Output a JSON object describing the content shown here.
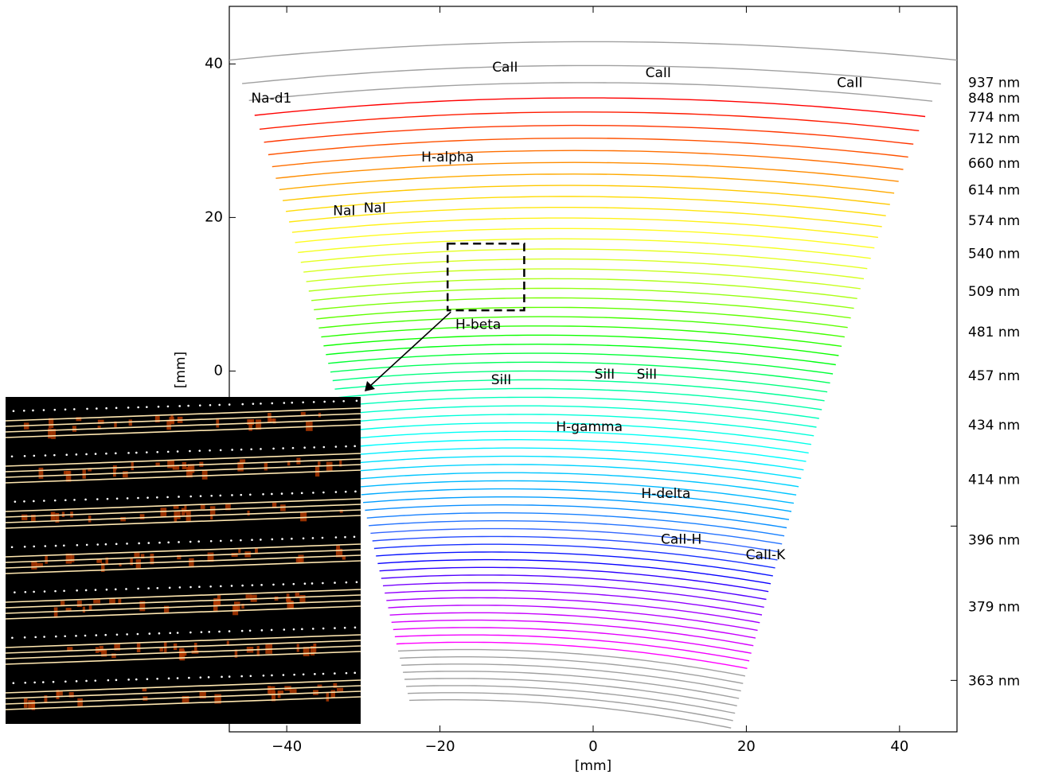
{
  "chart_data": {
    "type": "line",
    "title": "",
    "xlabel": "[mm]",
    "ylabel": "[mm]",
    "xlim": [
      -47.5,
      47.5
    ],
    "ylim": [
      -47.0,
      47.5
    ],
    "x_ticks": [
      -40,
      -20,
      0,
      20,
      40
    ],
    "y_ticks": [
      0,
      20,
      40
    ],
    "right_axis_labels": [
      "937 nm",
      "848 nm",
      "774 nm",
      "712 nm",
      "660 nm",
      "614 nm",
      "574 nm",
      "540 nm",
      "509 nm",
      "481 nm",
      "457 nm",
      "434 nm",
      "414 nm",
      "396 nm",
      "379 nm",
      "363 nm"
    ],
    "right_axis_label_y": [
      37.5,
      35.5,
      33.0,
      30.2,
      27.0,
      23.5,
      19.5,
      15.2,
      10.3,
      5.0,
      -0.7,
      -7.1,
      -14.2,
      -22.1,
      -30.8,
      -40.4
    ],
    "right_axis_ticks": [
      -20.2,
      -40.3
    ],
    "orders": {
      "count": 72,
      "top_y": 42.9,
      "bottom_y": -43.5,
      "top_x_range": [
        -47.5,
        47.5
      ],
      "bottom_x_range": [
        -24.0,
        18.0
      ],
      "grey_top_count": 3,
      "grey_bottom_count": 8,
      "colors": [
        "#ff0000",
        "#ff6600",
        "#ffd700",
        "#ffff22",
        "#c8ff22",
        "#66ff00",
        "#00ff00",
        "#00ff88",
        "#00ffcc",
        "#00ffff",
        "#00ccff",
        "#0099ff",
        "#3366ff",
        "#0000ff",
        "#8800ff",
        "#cc00ff",
        "#ff00ff"
      ],
      "grey_color": "#a0a0a0"
    },
    "annotations": [
      {
        "text": "CaII",
        "x": -11.5,
        "y": 39.5
      },
      {
        "text": "CaII",
        "x": 8.5,
        "y": 38.8
      },
      {
        "text": "CaII",
        "x": 33.5,
        "y": 37.5
      },
      {
        "text": "Na-d1",
        "x": -42.0,
        "y": 35.5
      },
      {
        "text": "H-alpha",
        "x": -19.0,
        "y": 27.8
      },
      {
        "text": "NaI",
        "x": -32.5,
        "y": 20.8
      },
      {
        "text": "NaI",
        "x": -28.5,
        "y": 21.2
      },
      {
        "text": "H-beta",
        "x": -15.0,
        "y": 6.0
      },
      {
        "text": "SiII",
        "x": -12.0,
        "y": -1.2
      },
      {
        "text": "SiII",
        "x": 1.5,
        "y": -0.5
      },
      {
        "text": "SiII",
        "x": 7.0,
        "y": -0.5
      },
      {
        "text": "H-gamma",
        "x": -0.5,
        "y": -7.3
      },
      {
        "text": "H-delta",
        "x": 9.5,
        "y": -16.0
      },
      {
        "text": "CaII-H",
        "x": 11.5,
        "y": -22.0
      },
      {
        "text": "CaII-K",
        "x": 22.5,
        "y": -24.0
      }
    ],
    "zoom_box": {
      "x": [
        -19.0,
        -9.0
      ],
      "y": [
        7.9,
        16.6
      ]
    },
    "inset": {
      "bands": 7,
      "lines_per_band": 4,
      "background": "#000000",
      "line_color": "#ffe7b0",
      "spot_color": "#b33a00"
    }
  }
}
